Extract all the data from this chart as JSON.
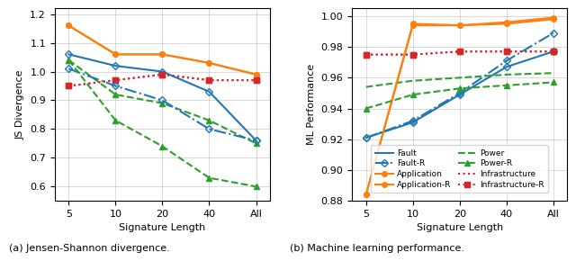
{
  "x_positions": [
    0,
    1,
    2,
    3,
    4
  ],
  "x_labels": [
    "5",
    "10",
    "20",
    "40",
    "All"
  ],
  "js_fault": [
    1.06,
    1.02,
    1.0,
    0.93,
    0.76
  ],
  "js_application": [
    1.16,
    1.06,
    1.06,
    1.03,
    0.99
  ],
  "js_power": [
    1.04,
    0.92,
    0.89,
    0.83,
    0.75
  ],
  "js_infrastructure": [
    0.95,
    0.97,
    0.99,
    0.97,
    0.97
  ],
  "js_fault_r": [
    1.01,
    0.95,
    0.9,
    0.8,
    0.76
  ],
  "js_application_r": [
    1.16,
    1.06,
    1.06,
    1.03,
    0.99
  ],
  "js_power_r": [
    1.04,
    0.83,
    0.74,
    0.63,
    0.6
  ],
  "js_infrastructure_r": [
    0.95,
    0.97,
    0.99,
    0.97,
    0.97
  ],
  "ml_fault": [
    0.921,
    0.931,
    0.949,
    0.967,
    0.977
  ],
  "ml_application": [
    0.884,
    0.994,
    0.994,
    0.995,
    0.998
  ],
  "ml_power": [
    0.954,
    0.958,
    0.96,
    0.962,
    0.963
  ],
  "ml_infrastructure": [
    0.975,
    0.975,
    0.977,
    0.977,
    0.977
  ],
  "ml_fault_r": [
    0.921,
    0.932,
    0.95,
    0.971,
    0.989
  ],
  "ml_application_r": [
    0.884,
    0.995,
    0.994,
    0.996,
    0.999
  ],
  "ml_power_r": [
    0.94,
    0.949,
    0.953,
    0.955,
    0.957
  ],
  "ml_infrastructure_r": [
    0.975,
    0.975,
    0.977,
    0.977,
    0.977
  ],
  "color_blue": "#1f77b4",
  "color_orange": "#ff7f0e",
  "color_green": "#2ca02c",
  "color_red": "#d62728",
  "caption_a": "(a) Jensen-Shannon divergence.",
  "caption_b": "(b) Machine learning performance."
}
